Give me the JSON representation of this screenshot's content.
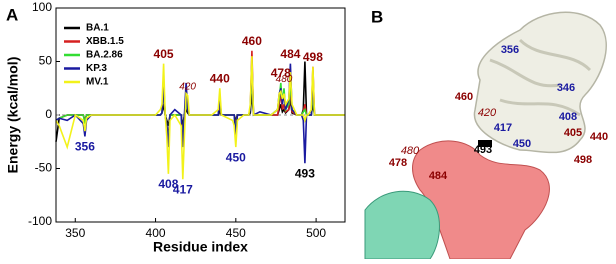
{
  "chart_data": {
    "type": "line",
    "panel_label": "A",
    "xlabel": "Residue index",
    "ylabel": "Energy (kcal/mol)",
    "x": [
      338,
      340,
      345,
      350,
      355,
      356,
      357,
      360,
      370,
      380,
      390,
      400,
      403,
      404,
      405,
      406,
      407,
      408,
      409,
      412,
      416,
      417,
      418,
      419,
      420,
      421,
      425,
      435,
      439,
      440,
      441,
      448,
      449,
      450,
      451,
      455,
      458,
      459,
      460,
      461,
      465,
      472,
      476,
      477,
      478,
      479,
      480,
      481,
      483,
      484,
      485,
      488,
      491,
      492,
      493,
      494,
      495,
      497,
      498,
      499,
      503,
      510,
      518
    ],
    "series": [
      {
        "name": "BA.1",
        "color": "#000000",
        "values": [
          -25,
          -3,
          0,
          0,
          0,
          -5,
          0,
          0,
          0,
          0,
          0,
          0,
          0,
          2,
          10,
          0,
          -5,
          -10,
          0,
          0,
          0,
          -10,
          0,
          5,
          2,
          0,
          0,
          0,
          0,
          3,
          0,
          0,
          0,
          -5,
          0,
          0,
          0,
          2,
          20,
          0,
          0,
          0,
          0,
          5,
          10,
          3,
          5,
          2,
          5,
          15,
          2,
          0,
          0,
          5,
          50,
          0,
          0,
          0,
          10,
          0,
          0,
          0,
          0
        ]
      },
      {
        "name": "XBB.1.5",
        "color": "#d62020",
        "values": [
          -5,
          -3,
          0,
          0,
          0,
          -5,
          0,
          0,
          0,
          0,
          0,
          0,
          0,
          2,
          25,
          0,
          -10,
          -20,
          0,
          0,
          0,
          -20,
          0,
          8,
          5,
          0,
          0,
          0,
          0,
          10,
          0,
          0,
          0,
          -10,
          0,
          0,
          0,
          5,
          60,
          0,
          0,
          0,
          0,
          10,
          20,
          5,
          10,
          3,
          5,
          25,
          3,
          0,
          0,
          3,
          10,
          0,
          0,
          0,
          45,
          0,
          0,
          0,
          0
        ]
      },
      {
        "name": "BA.2.86",
        "color": "#33dd33",
        "values": [
          -5,
          -3,
          0,
          0,
          0,
          -8,
          0,
          0,
          0,
          0,
          0,
          0,
          0,
          2,
          30,
          0,
          -10,
          -25,
          0,
          0,
          0,
          -25,
          0,
          10,
          5,
          0,
          0,
          0,
          0,
          15,
          0,
          0,
          0,
          -15,
          0,
          0,
          0,
          5,
          40,
          0,
          0,
          0,
          5,
          15,
          30,
          10,
          25,
          5,
          10,
          30,
          5,
          0,
          0,
          3,
          5,
          0,
          0,
          0,
          20,
          0,
          0,
          0,
          0
        ]
      },
      {
        "name": "KP.3",
        "color": "#1a1aa0",
        "values": [
          -5,
          -3,
          -5,
          0,
          -8,
          -20,
          -5,
          0,
          0,
          0,
          0,
          0,
          0,
          2,
          30,
          0,
          -10,
          -30,
          0,
          5,
          0,
          -30,
          0,
          30,
          5,
          0,
          0,
          0,
          0,
          15,
          0,
          0,
          0,
          -20,
          0,
          0,
          0,
          5,
          50,
          0,
          3,
          0,
          5,
          20,
          25,
          10,
          20,
          5,
          15,
          48,
          5,
          0,
          0,
          -5,
          -45,
          0,
          0,
          0,
          30,
          0,
          0,
          0,
          0
        ]
      },
      {
        "name": "MV.1",
        "color": "#f2f21a",
        "values": [
          -5,
          -10,
          -30,
          0,
          -5,
          -15,
          -3,
          0,
          0,
          0,
          0,
          0,
          5,
          10,
          48,
          0,
          -20,
          -55,
          -5,
          0,
          -10,
          -60,
          -20,
          20,
          18,
          0,
          0,
          0,
          5,
          25,
          0,
          -5,
          -10,
          -30,
          -5,
          0,
          0,
          10,
          55,
          0,
          0,
          0,
          5,
          20,
          22,
          15,
          20,
          10,
          15,
          40,
          10,
          0,
          0,
          0,
          -5,
          0,
          0,
          5,
          45,
          0,
          0,
          0,
          0
        ]
      }
    ],
    "xlim": [
      338,
      518
    ],
    "xticks": [
      350,
      400,
      450,
      500
    ],
    "ylim": [
      -100,
      100
    ],
    "yticks": [
      -100,
      -50,
      0,
      50,
      100
    ],
    "legend": "upper left",
    "annotations": [
      {
        "text": "405",
        "color": "#8b0000",
        "position": "above",
        "italic": false
      },
      {
        "text": "420",
        "color": "#8b0000",
        "position": "above",
        "italic": true
      },
      {
        "text": "440",
        "color": "#8b0000",
        "position": "above",
        "italic": false
      },
      {
        "text": "460",
        "color": "#8b0000",
        "position": "above",
        "italic": false
      },
      {
        "text": "478",
        "color": "#8b0000",
        "position": "above",
        "italic": false
      },
      {
        "text": "480",
        "color": "#8b0000",
        "position": "above",
        "italic": true
      },
      {
        "text": "484",
        "color": "#8b0000",
        "position": "above",
        "italic": false
      },
      {
        "text": "498",
        "color": "#8b0000",
        "position": "above",
        "italic": false
      },
      {
        "text": "356",
        "color": "#1a1aa0",
        "position": "below",
        "italic": false
      },
      {
        "text": "408",
        "color": "#1a1aa0",
        "position": "below",
        "italic": false
      },
      {
        "text": "417",
        "color": "#1a1aa0",
        "position": "below",
        "italic": false
      },
      {
        "text": "450",
        "color": "#1a1aa0",
        "position": "below",
        "italic": false
      },
      {
        "text": "493",
        "color": "#000000",
        "position": "below",
        "italic": false
      }
    ]
  },
  "panel_b": {
    "panel_label": "B",
    "labels": [
      "356",
      "346",
      "460",
      "420",
      "408",
      "417",
      "405",
      "440",
      "450",
      "493",
      "480",
      "478",
      "498",
      "484"
    ]
  }
}
